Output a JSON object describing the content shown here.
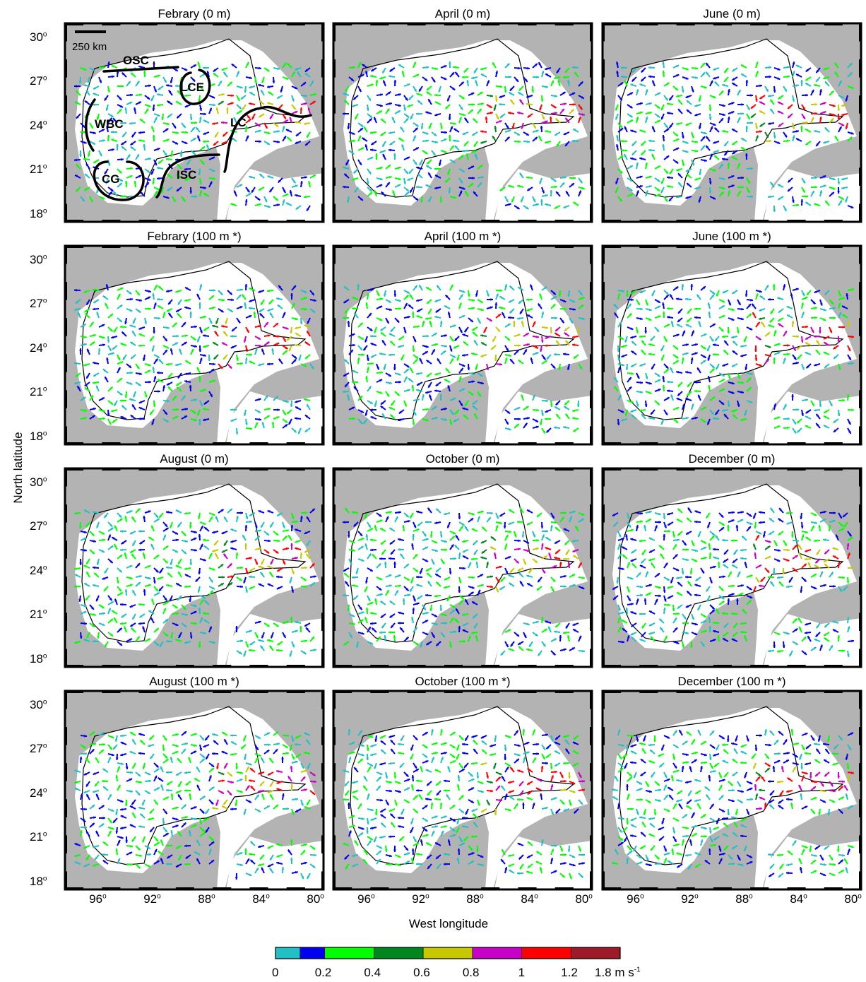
{
  "figure": {
    "y_axis_label": "North latitude",
    "x_axis_label": "West longitude",
    "lat_ticks": [
      "30",
      "27",
      "24",
      "21",
      "18"
    ],
    "lon_ticks": [
      "96",
      "92",
      "88",
      "84",
      "80"
    ],
    "degree_symbol": "o",
    "lat_range": [
      17.5,
      31
    ],
    "lon_range": [
      98.5,
      79.5
    ],
    "scale_bar_label": "250 km"
  },
  "panels": [
    {
      "title": "Febrary (0 m)",
      "annotated": true
    },
    {
      "title": "April (0 m)"
    },
    {
      "title": "June (0 m)"
    },
    {
      "title": "Febrary (100 m *)"
    },
    {
      "title": "April (100 m *)"
    },
    {
      "title": "June (100 m *)"
    },
    {
      "title": "August (0 m)"
    },
    {
      "title": "October (0 m)"
    },
    {
      "title": "December (0 m)"
    },
    {
      "title": "August (100 m *)"
    },
    {
      "title": "October (100 m *)"
    },
    {
      "title": "December (100 m *)"
    }
  ],
  "annotations": [
    "OSC",
    "LCE",
    "WBC",
    "LC",
    "CG",
    "ISC"
  ],
  "colorbar": {
    "colors": [
      "#21c0c4",
      "#0000f0",
      "#00ff00",
      "#00861e",
      "#c8c800",
      "#c800c8",
      "#ff0000",
      "#9d1a28"
    ],
    "breaks": [
      0,
      0.1,
      0.2,
      0.4,
      0.6,
      0.8,
      1,
      1.2,
      1.8
    ],
    "tick_labels": [
      "0",
      "0.2",
      "0.4",
      "0.6",
      "0.8",
      "1",
      "1.2",
      "1.8 m s"
    ],
    "unit_exponent": "-1"
  },
  "colors": {
    "land": "#b3b3b3",
    "ocean": "#ffffff",
    "frame": "#000000",
    "isobath": "#000000"
  }
}
